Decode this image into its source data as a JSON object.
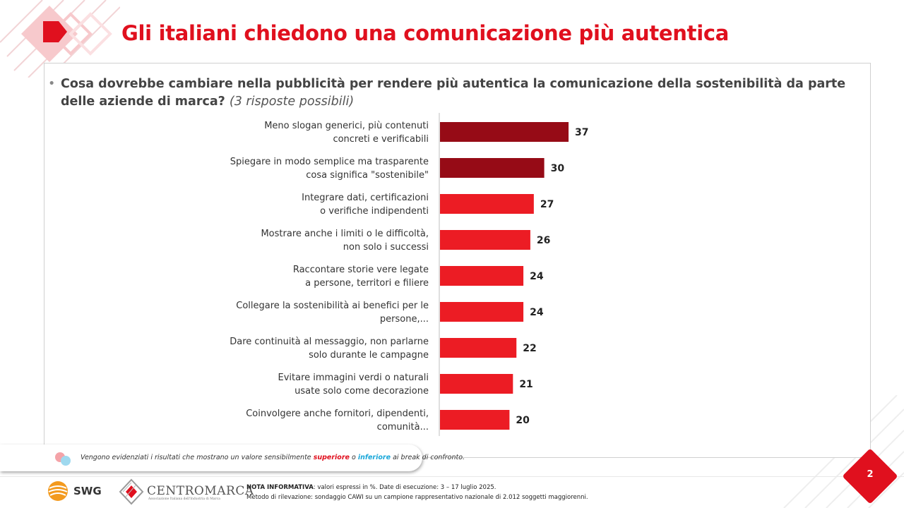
{
  "title": "Gli italiani chiedono una comunicazione più autentica",
  "question": {
    "text": "Cosa dovrebbe cambiare nella pubblicità per rendere più autentica la comunicazione della sostenibilità da parte delle aziende di marca?",
    "note": "(3 risposte possibili)"
  },
  "colors": {
    "brand_red": "#e0101e",
    "bar_top": "#960b16",
    "bar_other": "#ec1c24",
    "legend_superiore": "#e0101e",
    "legend_inferiore": "#1aa7d9"
  },
  "chart_data": {
    "type": "bar",
    "orientation": "horizontal",
    "categories": [
      [
        "Meno slogan generici, più contenuti",
        "concreti e verificabili"
      ],
      [
        "Spiegare in modo semplice ma trasparente",
        "cosa significa \"sostenibile\""
      ],
      [
        "Integrare dati, certificazioni",
        "o verifiche indipendenti"
      ],
      [
        "Mostrare anche i limiti o le difficoltà,",
        "non solo i successi"
      ],
      [
        "Raccontare storie vere legate",
        "a persone, territori e filiere"
      ],
      [
        "Collegare la sostenibilità ai benefici per le",
        "persone,..."
      ],
      [
        "Dare continuità al messaggio, non parlarne",
        "solo durante le campagne"
      ],
      [
        "Evitare immagini verdi o naturali",
        "usate solo come decorazione"
      ],
      [
        "Coinvolgere anche fornitori, dipendenti,",
        "comunità..."
      ]
    ],
    "values": [
      37,
      30,
      27,
      26,
      24,
      24,
      22,
      21,
      20
    ],
    "highlight": [
      true,
      true,
      false,
      false,
      false,
      false,
      false,
      false,
      false
    ],
    "unit": "%",
    "xlim": [
      0,
      100
    ]
  },
  "legend": {
    "prefix": "Vengono evidenziati i risultati che mostrano un valore sensibilmente",
    "superiore": "superiore",
    "middle": "o",
    "inferiore": "inferiore",
    "suffix": "ai break di confronto."
  },
  "footer": {
    "note_label": "NOTA INFORMATIVA",
    "note_text": ": valori espressi in %. Date di esecuzione: 3 – 17 luglio 2025.",
    "method_text": "Metodo di rilevazione: sondaggio CAWI su un campione rappresentativo nazionale di 2.012 soggetti maggiorenni.",
    "swg_label": "SWG",
    "centromarca_label": "CENTROMARCA",
    "centromarca_sub": "Associazione Italiana dell'Industria di Marca"
  },
  "page_number": "2"
}
